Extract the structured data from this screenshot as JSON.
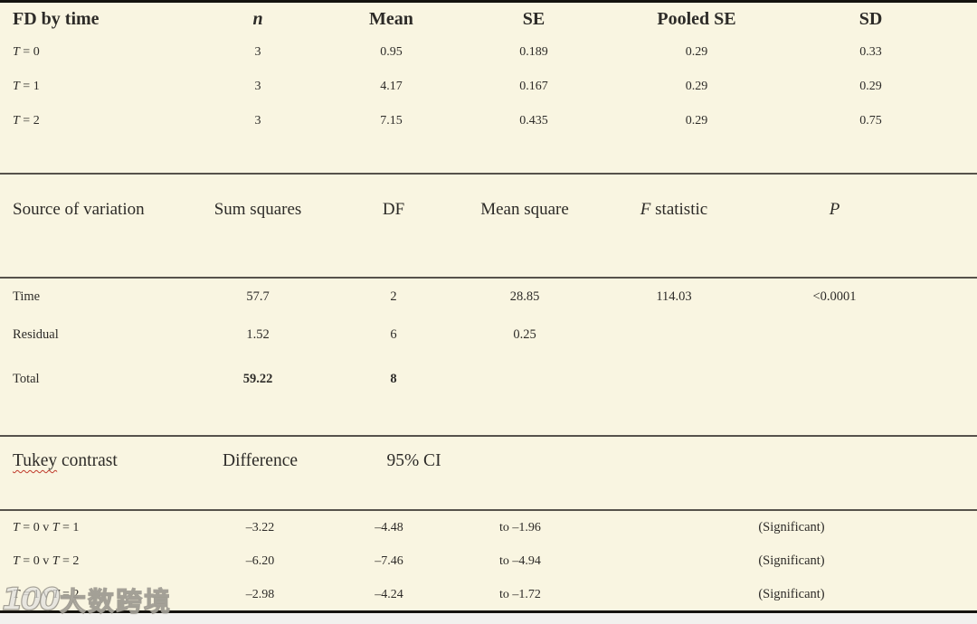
{
  "colors": {
    "background": "#f9f5e1",
    "text": "#2d2b28",
    "rule_thin": "#56524b",
    "rule_thick": "#15130e",
    "spellcheck_underline": "#c0392b"
  },
  "descriptives": {
    "headers": {
      "c1": "FD by time",
      "c2": "n",
      "c3": "Mean",
      "c4": "SE",
      "c5": "Pooled SE",
      "c6": "SD"
    },
    "rows": [
      {
        "label_var": "T",
        "label_rest": " = 0",
        "n": "3",
        "mean": "0.95",
        "se": "0.189",
        "pooled_se": "0.29",
        "sd": "0.33"
      },
      {
        "label_var": "T",
        "label_rest": " = 1",
        "n": "3",
        "mean": "4.17",
        "se": "0.167",
        "pooled_se": "0.29",
        "sd": "0.29"
      },
      {
        "label_var": "T",
        "label_rest": " = 2",
        "n": "3",
        "mean": "7.15",
        "se": "0.435",
        "pooled_se": "0.29",
        "sd": "0.75"
      }
    ]
  },
  "anova": {
    "headers": {
      "c1": "Source of variation",
      "c2": "Sum squares",
      "c3": "DF",
      "c4": "Mean square",
      "c5_var": "F",
      "c5_rest": " statistic",
      "c6": "P"
    },
    "rows": [
      {
        "label": "Time",
        "ss": "57.7",
        "df": "2",
        "ms": "28.85",
        "f": "114.03",
        "p": "<0.0001"
      },
      {
        "label": "Residual",
        "ss": "1.52",
        "df": "6",
        "ms": "0.25"
      },
      {
        "label": "Total",
        "ss": "59.22",
        "df": "8"
      }
    ]
  },
  "tukey": {
    "headers": {
      "c1_word": "Tukey",
      "c1_rest": " contrast",
      "c2": "Difference",
      "c3": "95% CI"
    },
    "rows": [
      {
        "p1": "T",
        "p2": " = 0 v ",
        "p3": "T",
        "p4": " = 1",
        "diff": "–3.22",
        "ci_low": "–4.48",
        "ci_high": "to –1.96",
        "note": "(Significant)"
      },
      {
        "p1": "T",
        "p2": " = 0 v ",
        "p3": "T",
        "p4": " = 2",
        "diff": "–6.20",
        "ci_low": "–7.46",
        "ci_high": "to –4.94",
        "note": "(Significant)"
      },
      {
        "p1": "T",
        "p2": " = 1 v ",
        "p3": "T",
        "p4": " = 2",
        "diff": "–2.98",
        "ci_low": "–4.24",
        "ci_high": "to –1.72",
        "note": "(Significant)"
      }
    ]
  },
  "watermark": {
    "logo": "100",
    "text": "大数跨境"
  }
}
